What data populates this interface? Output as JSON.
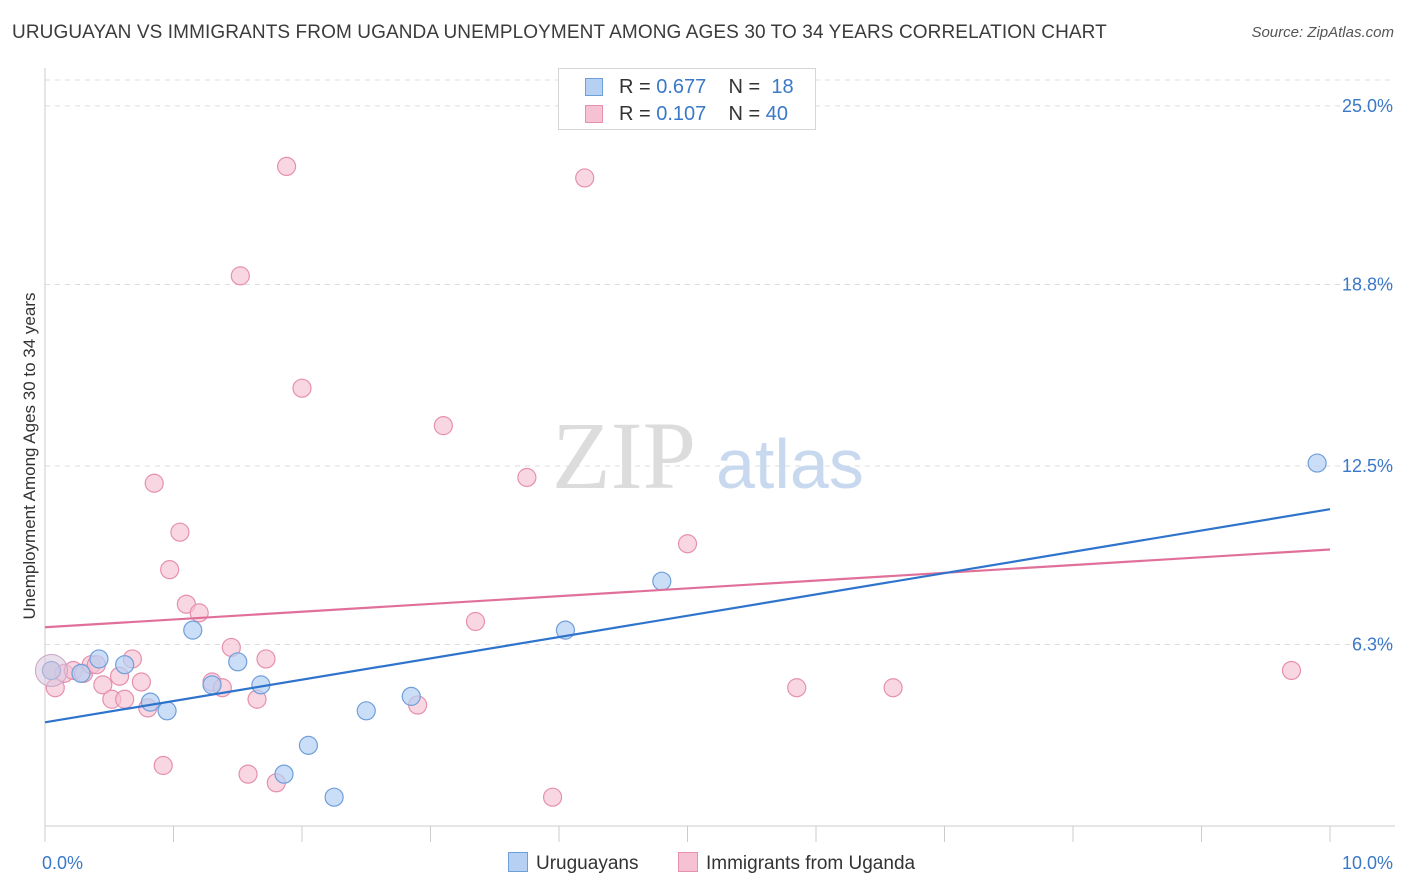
{
  "header": {
    "title": "URUGUAYAN VS IMMIGRANTS FROM UGANDA UNEMPLOYMENT AMONG AGES 30 TO 34 YEARS CORRELATION CHART",
    "source": "Source: ZipAtlas.com"
  },
  "watermark": {
    "zip": "ZIP",
    "atlas": "atlas"
  },
  "legend": {
    "rows": [
      {
        "r_label": "R = ",
        "r_value": "0.677",
        "n_label": "N = ",
        "n_value": "18"
      },
      {
        "r_label": "R = ",
        "r_value": "0.107",
        "n_label": "N = ",
        "n_value": "40"
      }
    ]
  },
  "bottom_legend": {
    "series_a": "Uruguayans",
    "series_b": "Immigrants from Uganda"
  },
  "colors": {
    "blue_fill": "#b5d0f3",
    "blue_stroke": "#6f9fd9",
    "blue_line": "#2f74cc",
    "pink_fill": "#f6c2d3",
    "pink_stroke": "#e690ad",
    "pink_line": "#e0709a",
    "grid": "#dddddd",
    "axis_text": "#3a78c8"
  },
  "chart_data": {
    "type": "scatter",
    "title": "URUGUAYAN VS IMMIGRANTS FROM UGANDA UNEMPLOYMENT AMONG AGES 30 TO 34 YEARS CORRELATION CHART",
    "xlabel": "",
    "ylabel": "Unemployment Among Ages 30 to 34 years",
    "xlim": [
      0,
      10
    ],
    "ylim": [
      0,
      25.9
    ],
    "x_tick_labels": [
      "0.0%",
      "10.0%"
    ],
    "y_ticks": [
      6.3,
      12.5,
      18.8,
      25.0
    ],
    "y_tick_labels": [
      "6.3%",
      "12.5%",
      "18.8%",
      "25.0%"
    ],
    "series": [
      {
        "name": "Uruguayans",
        "r": 0.677,
        "n": 18,
        "points": [
          {
            "x": 0.05,
            "y": 5.4
          },
          {
            "x": 0.28,
            "y": 5.3
          },
          {
            "x": 0.42,
            "y": 5.8
          },
          {
            "x": 0.62,
            "y": 5.6
          },
          {
            "x": 0.82,
            "y": 4.3
          },
          {
            "x": 0.95,
            "y": 4.0
          },
          {
            "x": 1.15,
            "y": 6.8
          },
          {
            "x": 1.3,
            "y": 4.9
          },
          {
            "x": 1.5,
            "y": 5.7
          },
          {
            "x": 1.68,
            "y": 4.9
          },
          {
            "x": 1.86,
            "y": 1.8
          },
          {
            "x": 2.05,
            "y": 2.8
          },
          {
            "x": 2.25,
            "y": 1.0
          },
          {
            "x": 2.5,
            "y": 4.0
          },
          {
            "x": 2.85,
            "y": 4.5
          },
          {
            "x": 4.05,
            "y": 6.8
          },
          {
            "x": 4.8,
            "y": 8.5
          },
          {
            "x": 9.9,
            "y": 12.6
          }
        ],
        "trend": {
          "x0": 0,
          "y0": 3.6,
          "x1": 10,
          "y1": 11.0
        }
      },
      {
        "name": "Immigrants from Uganda",
        "r": 0.107,
        "n": 40,
        "points": [
          {
            "x": 0.05,
            "y": 5.4
          },
          {
            "x": 0.08,
            "y": 4.8
          },
          {
            "x": 0.15,
            "y": 5.3
          },
          {
            "x": 0.22,
            "y": 5.4
          },
          {
            "x": 0.3,
            "y": 5.3
          },
          {
            "x": 0.36,
            "y": 5.6
          },
          {
            "x": 0.45,
            "y": 4.9
          },
          {
            "x": 0.52,
            "y": 4.4
          },
          {
            "x": 0.58,
            "y": 5.2
          },
          {
            "x": 0.62,
            "y": 4.4
          },
          {
            "x": 0.68,
            "y": 5.8
          },
          {
            "x": 0.75,
            "y": 5.0
          },
          {
            "x": 0.8,
            "y": 4.1
          },
          {
            "x": 0.85,
            "y": 11.9
          },
          {
            "x": 0.92,
            "y": 2.1
          },
          {
            "x": 0.97,
            "y": 8.9
          },
          {
            "x": 1.05,
            "y": 10.2
          },
          {
            "x": 1.1,
            "y": 7.7
          },
          {
            "x": 1.2,
            "y": 7.4
          },
          {
            "x": 1.3,
            "y": 5.0
          },
          {
            "x": 1.38,
            "y": 4.8
          },
          {
            "x": 1.45,
            "y": 6.2
          },
          {
            "x": 1.52,
            "y": 19.1
          },
          {
            "x": 1.58,
            "y": 1.8
          },
          {
            "x": 1.65,
            "y": 4.4
          },
          {
            "x": 1.72,
            "y": 5.8
          },
          {
            "x": 1.8,
            "y": 1.5
          },
          {
            "x": 1.88,
            "y": 22.9
          },
          {
            "x": 2.0,
            "y": 15.2
          },
          {
            "x": 2.9,
            "y": 4.2
          },
          {
            "x": 3.1,
            "y": 13.9
          },
          {
            "x": 3.35,
            "y": 7.1
          },
          {
            "x": 3.75,
            "y": 12.1
          },
          {
            "x": 3.95,
            "y": 1.0
          },
          {
            "x": 4.2,
            "y": 22.5
          },
          {
            "x": 5.0,
            "y": 9.8
          },
          {
            "x": 5.85,
            "y": 4.8
          },
          {
            "x": 6.6,
            "y": 4.8
          },
          {
            "x": 9.7,
            "y": 5.4
          },
          {
            "x": 0.4,
            "y": 5.6
          }
        ],
        "trend": {
          "x0": 0,
          "y0": 6.9,
          "x1": 10,
          "y1": 9.6
        }
      }
    ]
  }
}
